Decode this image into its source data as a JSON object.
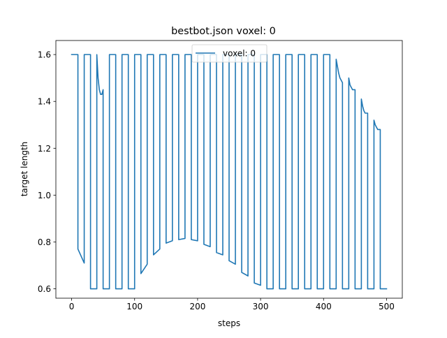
{
  "chart_data": {
    "type": "line",
    "title": "bestbot.json voxel: 0",
    "xlabel": "steps",
    "ylabel": "target length",
    "xlim": [
      -25,
      525
    ],
    "ylim": [
      0.56,
      1.66
    ],
    "xticks": [
      0,
      100,
      200,
      300,
      400,
      500
    ],
    "yticks": [
      0.6,
      0.8,
      1.0,
      1.2,
      1.4,
      1.6
    ],
    "xtick_labels": [
      "0",
      "100",
      "200",
      "300",
      "400",
      "500"
    ],
    "ytick_labels": [
      "0.6",
      "0.8",
      "1.0",
      "1.2",
      "1.4",
      "1.6"
    ],
    "grid": false,
    "legend": {
      "position": "top-center",
      "entries": [
        "voxel: 0"
      ]
    },
    "series": [
      {
        "name": "voxel: 0",
        "color": "#1f77b4",
        "x": [
          0,
          10,
          10,
          20,
          20,
          30,
          30,
          40,
          40,
          42,
          44,
          46,
          48,
          50,
          50,
          60,
          60,
          70,
          70,
          80,
          80,
          90,
          90,
          100,
          100,
          110,
          110,
          120,
          120,
          130,
          130,
          140,
          140,
          150,
          150,
          160,
          160,
          170,
          170,
          180,
          180,
          190,
          190,
          200,
          200,
          210,
          210,
          220,
          220,
          230,
          230,
          240,
          240,
          250,
          250,
          260,
          260,
          270,
          270,
          280,
          280,
          290,
          290,
          300,
          300,
          310,
          310,
          320,
          320,
          330,
          330,
          340,
          340,
          350,
          350,
          360,
          360,
          370,
          370,
          380,
          380,
          390,
          390,
          400,
          400,
          410,
          410,
          420,
          420,
          422,
          424,
          426,
          428,
          430,
          430,
          440,
          440,
          442,
          444,
          446,
          448,
          450,
          450,
          460,
          460,
          462,
          464,
          466,
          468,
          470,
          470,
          480,
          480,
          482,
          484,
          486,
          488,
          490,
          490,
          500
        ],
        "y": [
          1.6,
          1.6,
          0.77,
          0.71,
          1.6,
          1.6,
          0.6,
          0.6,
          1.6,
          1.5,
          1.45,
          1.43,
          1.43,
          1.45,
          0.6,
          0.6,
          1.6,
          1.6,
          0.6,
          0.6,
          1.6,
          1.6,
          0.6,
          0.6,
          1.6,
          1.6,
          0.665,
          0.705,
          1.6,
          1.6,
          0.745,
          0.77,
          1.6,
          1.6,
          0.795,
          0.805,
          1.6,
          1.6,
          0.81,
          0.815,
          1.6,
          1.6,
          0.81,
          0.805,
          1.6,
          1.6,
          0.79,
          0.78,
          1.6,
          1.6,
          0.755,
          0.745,
          1.6,
          1.6,
          0.72,
          0.705,
          1.6,
          1.6,
          0.67,
          0.655,
          1.6,
          1.6,
          0.625,
          0.615,
          1.6,
          1.6,
          0.6,
          0.6,
          1.6,
          1.6,
          0.6,
          0.6,
          1.6,
          1.6,
          0.6,
          0.6,
          1.6,
          1.6,
          0.6,
          0.6,
          1.6,
          1.6,
          0.6,
          0.6,
          1.6,
          1.6,
          0.6,
          0.6,
          1.58,
          1.55,
          1.52,
          1.5,
          1.49,
          1.48,
          0.6,
          0.6,
          1.5,
          1.47,
          1.46,
          1.45,
          1.45,
          1.45,
          0.6,
          0.6,
          1.41,
          1.38,
          1.36,
          1.35,
          1.35,
          1.35,
          0.6,
          0.6,
          1.32,
          1.3,
          1.29,
          1.28,
          1.28,
          1.28,
          0.6,
          0.6
        ]
      }
    ]
  }
}
